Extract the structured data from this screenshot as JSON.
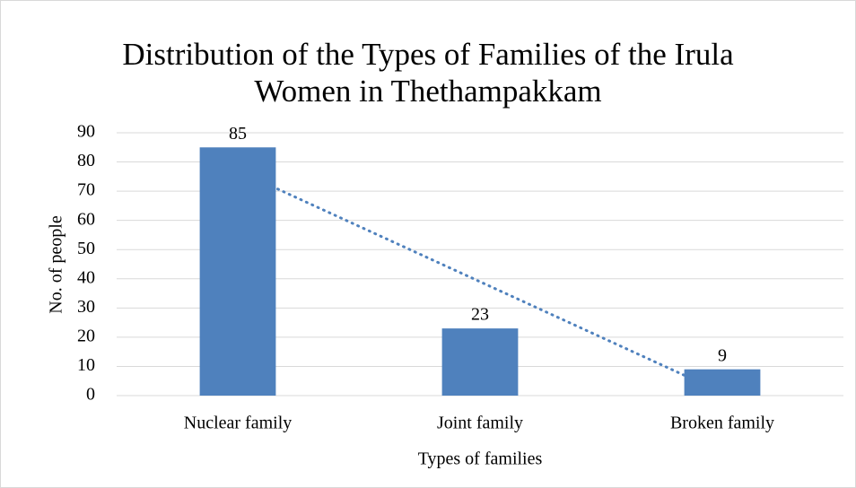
{
  "chart_data": {
    "type": "bar",
    "title": "Distribution of the Types of Families of the Irula Women in Thethampakkam",
    "xlabel": "Types of families",
    "ylabel": "No. of people",
    "categories": [
      "Nuclear family",
      "Joint family",
      "Broken family"
    ],
    "values": [
      85,
      23,
      9
    ],
    "color": "#4f81bd",
    "ylim": [
      0,
      90
    ],
    "yticks": [
      0,
      10,
      20,
      30,
      40,
      50,
      60,
      70,
      80,
      90
    ],
    "grid": true,
    "trendline": "linear"
  }
}
